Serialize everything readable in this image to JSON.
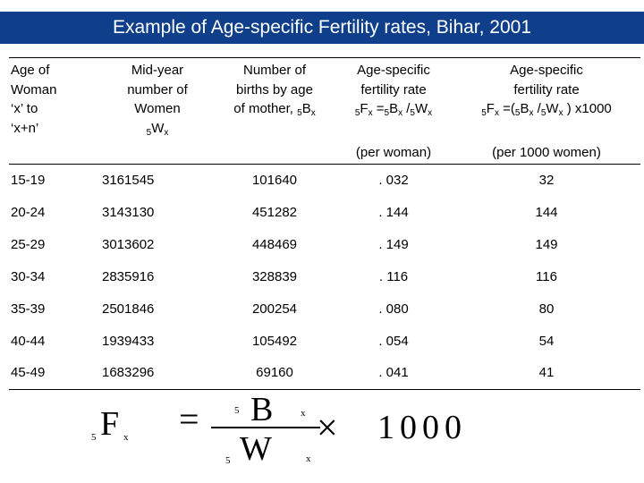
{
  "title": "Example of Age-specific Fertility rates, Bihar, 2001",
  "table": {
    "headers": {
      "age": [
        "Age of",
        "Woman",
        "‘x’ to",
        "‘x+n’"
      ],
      "midyear": [
        "Mid-year",
        "number  of",
        "Women"
      ],
      "midyear_sub": "5",
      "midyear_var": "W",
      "midyear_var_sub": "x",
      "births": [
        "Number of",
        "births by age",
        "of mother,"
      ],
      "births_sub": "5",
      "births_var": "B",
      "births_var_sub": "x",
      "asfr1": [
        "Age-specific",
        "fertility rate"
      ],
      "asfr1_formula": {
        "p1": "5",
        "p2": "F",
        "p3": "x",
        "p4": " =",
        "p5": "5",
        "p6": "B",
        "p7": "x",
        "p8": " /",
        "p9": "5",
        "p10": "W",
        "p11": "x"
      },
      "asfr1_unit": "(per woman)",
      "asfr2": [
        "Age-specific",
        "fertility rate"
      ],
      "asfr2_formula": {
        "p1": "5",
        "p2": "F",
        "p3": "x",
        "p4": "  =(",
        "p5": "5",
        "p6": "B",
        "p7": "x",
        "p8": " /",
        "p9": "5",
        "p10": "W",
        "p11": "x",
        "p12": " ) x1000"
      },
      "asfr2_unit": "(per 1000 women)"
    },
    "rows": [
      {
        "age": "15-19",
        "women": "3161545",
        "births": "101640",
        "rate": ". 032",
        "rate1000": "32"
      },
      {
        "age": "20-24",
        "women": "3143130",
        "births": "451282",
        "rate": ". 144",
        "rate1000": "144"
      },
      {
        "age": "25-29",
        "women": "3013602",
        "births": "448469",
        "rate": ". 149",
        "rate1000": "149"
      },
      {
        "age": "30-34",
        "women": "2835916",
        "births": "328839",
        "rate": ". 116",
        "rate1000": "116"
      },
      {
        "age": "35-39",
        "women": "2501846",
        "births": "200254",
        "rate": ". 080",
        "rate1000": "80"
      },
      {
        "age": "40-44",
        "women": "1939433",
        "births": "105492",
        "rate": ". 054",
        "rate1000": "54"
      },
      {
        "age": "45-49",
        "women": "1683296",
        "births": "69160",
        "rate": ". 041",
        "rate1000": "41"
      }
    ]
  },
  "formula": {
    "lhs_sub": "5",
    "lhs": "F",
    "lhs_var_sub": "x",
    "equals": "=",
    "num_sub": "5",
    "num": "B",
    "num_var_sub": "x",
    "den_sub": "5",
    "den": "W",
    "den_var_sub": "x",
    "times": "×",
    "multiplier": "1000"
  }
}
